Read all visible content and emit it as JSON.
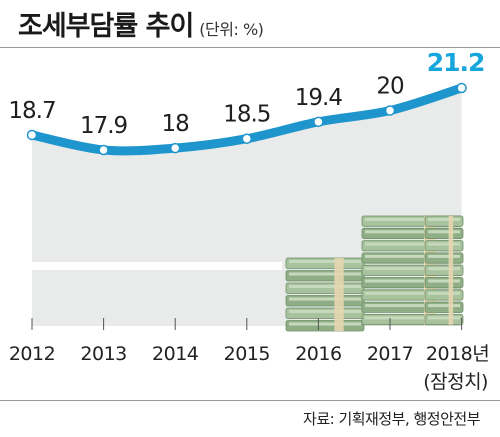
{
  "header": {
    "title": "조세부담률 추이",
    "unit": "(단위: %)"
  },
  "footer": {
    "source": "자료: 기획재정부, 행정안전부"
  },
  "colors": {
    "line": "#1e95cc",
    "highlight": "#16a6dc",
    "area": "#e9eaea"
  },
  "chart_data": {
    "type": "line",
    "categories": [
      "2012",
      "2013",
      "2014",
      "2015",
      "2016",
      "2017",
      "2018년"
    ],
    "category_note": "(잠정치)",
    "values": [
      18.7,
      17.9,
      18,
      18.5,
      19.4,
      20,
      21.2
    ],
    "value_labels": [
      "18.7",
      "17.9",
      "18",
      "18.5",
      "19.4",
      "20",
      "21.2"
    ],
    "xlabel": "",
    "ylabel": "",
    "grid": false,
    "legend": "none"
  }
}
